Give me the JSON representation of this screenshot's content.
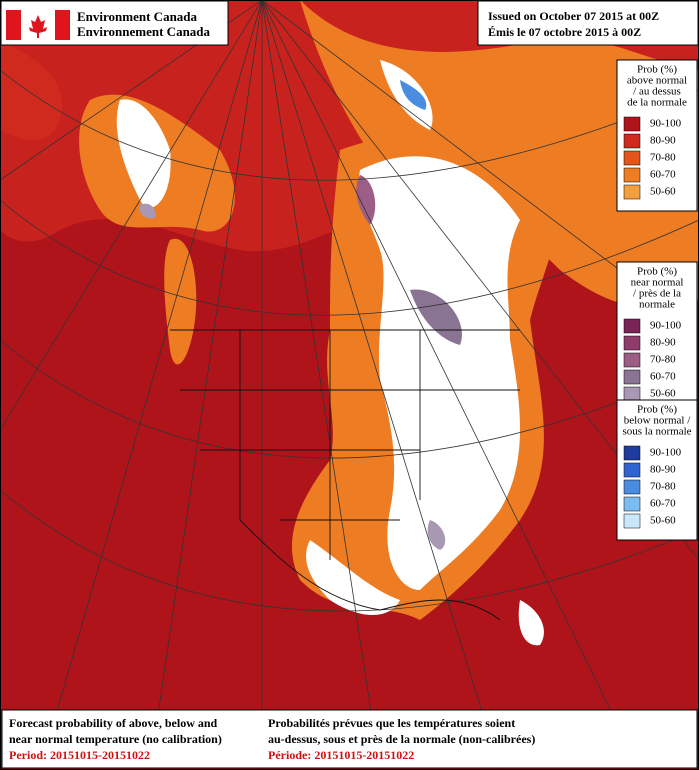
{
  "header": {
    "agency_en": "Environment Canada",
    "agency_fr": "Environnement Canada",
    "issued_en": "Issued on October 07 2015 at 00Z",
    "issued_fr": "Émis le 07 octobre 2015 à 00Z"
  },
  "legends": [
    {
      "title": [
        "Prob (%)",
        "above normal",
        "/ au dessus",
        "de la normale"
      ],
      "items": [
        {
          "label": "90-100",
          "color": "#b0141b"
        },
        {
          "label": "80-90",
          "color": "#d02a1e"
        },
        {
          "label": "70-80",
          "color": "#e4561c"
        },
        {
          "label": "60-70",
          "color": "#ee7c22"
        },
        {
          "label": "50-60",
          "color": "#f4a040"
        }
      ]
    },
    {
      "title": [
        "Prob (%)",
        "near normal",
        "/ près de la",
        "normale"
      ],
      "items": [
        {
          "label": "90-100",
          "color": "#7a2456"
        },
        {
          "label": "80-90",
          "color": "#8e3c6c"
        },
        {
          "label": "70-80",
          "color": "#9c5e86"
        },
        {
          "label": "60-70",
          "color": "#8a7494"
        },
        {
          "label": "50-60",
          "color": "#a898b4"
        }
      ]
    },
    {
      "title": [
        "Prob (%)",
        "below normal /",
        "sous la normale"
      ],
      "items": [
        {
          "label": "90-100",
          "color": "#1e3ca0"
        },
        {
          "label": "80-90",
          "color": "#2e64d0"
        },
        {
          "label": "70-80",
          "color": "#4a8ce0"
        },
        {
          "label": "60-70",
          "color": "#7cbcee"
        },
        {
          "label": "50-60",
          "color": "#c8e8fa"
        }
      ]
    }
  ],
  "footer": {
    "left": [
      "Forecast probability of above, below and",
      "near normal temperature (no calibration)"
    ],
    "period_en": "Period: 20151015-20151022",
    "right": [
      "Probabilités prévues que les températures soient",
      "au-dessus, sous et près de la normale (non-calibrées)"
    ],
    "period_fr": "Période: 20151015-20151022"
  }
}
